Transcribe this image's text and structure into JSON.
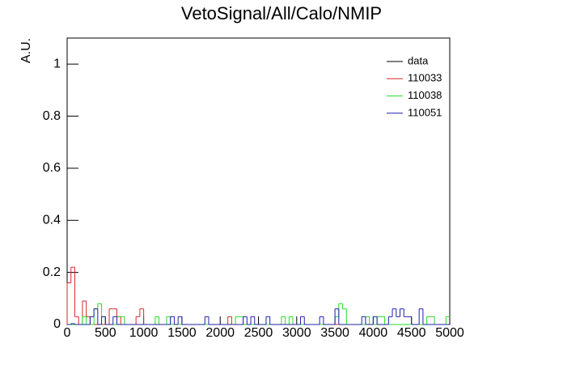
{
  "chart_data": {
    "type": "histogram",
    "title": "VetoSignal/All/Calo/NMIP",
    "y_label": "A.U.",
    "bins": [
      0,
      50,
      100,
      150,
      200,
      250,
      300,
      350,
      400,
      450,
      500,
      550,
      600,
      650,
      700,
      750,
      800,
      850,
      900,
      950,
      1000,
      1050,
      1100,
      1150,
      1200,
      1250,
      1300,
      1350,
      1400,
      1450,
      1500,
      1550,
      1600,
      1650,
      1700,
      1750,
      1800,
      1850,
      1900,
      1950,
      2000,
      2050,
      2100,
      2150,
      2200,
      2250,
      2300,
      2350,
      2400,
      2450,
      2500,
      2550,
      2600,
      2650,
      2700,
      2750,
      2800,
      2850,
      2900,
      2950,
      3000,
      3050,
      3100,
      3150,
      3200,
      3250,
      3300,
      3350,
      3400,
      3450,
      3500,
      3550,
      3600,
      3650,
      3700,
      3750,
      3800,
      3850,
      3900,
      3950,
      4000,
      4050,
      4100,
      4150,
      4200,
      4250,
      4300,
      4350,
      4400,
      4450,
      4500,
      4550,
      4600,
      4650,
      4700,
      4750,
      4800,
      4850,
      4900,
      4950,
      5000
    ],
    "series": [
      {
        "name": "data",
        "color": "#000000",
        "values": [
          0,
          0,
          0,
          0,
          0,
          0,
          0,
          0,
          0,
          0,
          0,
          0,
          0,
          0,
          0,
          0,
          0,
          0,
          0,
          0,
          0,
          0,
          0,
          0,
          0,
          0,
          0,
          0,
          0,
          0,
          0,
          0,
          0,
          0,
          0,
          0,
          0,
          0,
          0,
          0,
          0,
          0,
          0,
          0,
          0,
          0,
          0,
          0,
          0,
          0,
          0,
          0,
          0,
          0,
          0,
          0,
          0,
          0,
          0,
          0,
          0,
          0,
          0,
          0,
          0,
          0,
          0,
          0,
          0,
          0,
          0,
          0,
          0,
          0,
          0,
          0,
          0,
          0,
          0,
          0,
          0,
          0,
          0,
          0,
          0,
          0,
          0,
          0,
          0,
          0,
          0,
          0,
          0,
          0,
          0,
          0,
          0,
          0,
          0,
          0
        ]
      },
      {
        "name": "110033",
        "color": "#d62728",
        "values": [
          0.16,
          0.22,
          0.03,
          0,
          0.09,
          0.03,
          0,
          0,
          0,
          0,
          0,
          0.06,
          0.06,
          0.03,
          0,
          0,
          0,
          0,
          0.03,
          0.06,
          0,
          0,
          0,
          0,
          0,
          0,
          0,
          0,
          0,
          0,
          0,
          0,
          0,
          0,
          0,
          0,
          0,
          0,
          0,
          0,
          0,
          0,
          0.03,
          0,
          0,
          0,
          0,
          0,
          0,
          0,
          0,
          0,
          0,
          0,
          0,
          0,
          0,
          0,
          0,
          0,
          0,
          0,
          0,
          0,
          0,
          0,
          0,
          0,
          0,
          0,
          0,
          0,
          0,
          0,
          0,
          0,
          0,
          0,
          0,
          0,
          0,
          0,
          0,
          0,
          0,
          0,
          0,
          0,
          0,
          0,
          0,
          0,
          0,
          0,
          0,
          0,
          0,
          0,
          0,
          0
        ]
      },
      {
        "name": "110038",
        "color": "#22dd22",
        "values": [
          0,
          0,
          0,
          0,
          0.03,
          0,
          0,
          0.06,
          0.08,
          0.03,
          0,
          0,
          0,
          0.03,
          0.03,
          0,
          0,
          0,
          0,
          0,
          0,
          0,
          0,
          0.03,
          0,
          0,
          0.03,
          0,
          0,
          0,
          0,
          0,
          0,
          0,
          0,
          0,
          0,
          0,
          0,
          0,
          0,
          0,
          0,
          0,
          0.03,
          0.03,
          0,
          0,
          0,
          0,
          0,
          0,
          0,
          0,
          0,
          0,
          0.03,
          0,
          0.03,
          0,
          0,
          0,
          0,
          0,
          0,
          0,
          0,
          0,
          0,
          0,
          0.03,
          0.08,
          0.06,
          0,
          0,
          0,
          0,
          0,
          0.03,
          0,
          0,
          0.03,
          0.03,
          0,
          0,
          0,
          0,
          0,
          0,
          0,
          0,
          0,
          0,
          0,
          0.03,
          0.03,
          0,
          0,
          0,
          0.03
        ]
      },
      {
        "name": "110051",
        "color": "#1f1faa",
        "values": [
          0,
          0.003,
          0,
          0,
          0,
          0,
          0.03,
          0.06,
          0,
          0.03,
          0,
          0,
          0.03,
          0,
          0,
          0,
          0,
          0,
          0,
          0,
          0,
          0,
          0,
          0,
          0,
          0,
          0,
          0.03,
          0,
          0.03,
          0,
          0,
          0,
          0,
          0,
          0,
          0.03,
          0,
          0,
          0,
          0,
          0,
          0,
          0,
          0,
          0,
          0.03,
          0,
          0.03,
          0,
          0,
          0,
          0.03,
          0,
          0,
          0,
          0,
          0,
          0,
          0,
          0,
          0.03,
          0,
          0,
          0,
          0,
          0.03,
          0,
          0,
          0,
          0.06,
          0,
          0,
          0,
          0,
          0,
          0,
          0.03,
          0,
          0,
          0.03,
          0,
          0,
          0,
          0.03,
          0.06,
          0.03,
          0.06,
          0.03,
          0.03,
          0,
          0,
          0.06,
          0,
          0,
          0,
          0,
          0,
          0,
          0
        ]
      }
    ],
    "xlim": [
      0,
      5000
    ],
    "xticks": [
      0,
      500,
      1000,
      1500,
      2000,
      2500,
      3000,
      3500,
      4000,
      4500,
      5000
    ],
    "ylim": [
      0,
      1.1
    ],
    "yticks": [
      0,
      0.2,
      0.4,
      0.6,
      0.8,
      1
    ],
    "legend": "top-right"
  }
}
